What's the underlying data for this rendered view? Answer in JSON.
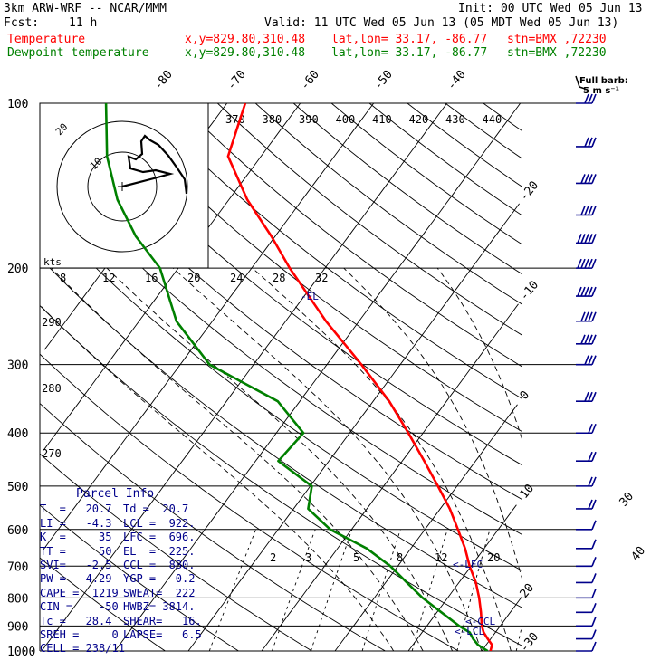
{
  "header": {
    "model": "3km ARW-WRF -- NCAR/MMM",
    "init": "Init: 00 UTC Wed 05 Jun 13",
    "fcst_label": "Fcst:",
    "fcst_value": "11 h",
    "valid": "Valid: 11 UTC Wed 05 Jun 13 (05 MDT Wed 05 Jun 13)",
    "temp_line": {
      "name": "Temperature",
      "xy": "x,y=829.80,310.48",
      "latlon": "lat,lon= 33.17, -86.77",
      "stn": "stn=BMX ,72230"
    },
    "dew_line": {
      "name": "Dewpoint temperature",
      "xy": "x,y=829.80,310.48",
      "latlon": "lat,lon= 33.17, -86.77",
      "stn": "stn=BMX ,72230"
    }
  },
  "colors": {
    "temperature": "#ff0000",
    "dewpoint": "#008000",
    "info": "#00008b",
    "wind": "#00008b",
    "grid": "#000000"
  },
  "barb_legend": {
    "title": "Full barb:",
    "value": "5 m s⁻¹"
  },
  "hodograph": {
    "units": "kts",
    "rings": [
      "10",
      "20"
    ]
  },
  "annotations": {
    "el": "-EL",
    "lfc": "LFC",
    "ccl": "CCL",
    "lcl": "LCL"
  },
  "parcel_info": {
    "title": "Parcel Info",
    "rows": [
      [
        "T  =   20.7",
        "Td =  20.7"
      ],
      [
        "LI =   -4.3",
        "LCL =  922."
      ],
      [
        "K  =     35",
        "LFC =  696."
      ],
      [
        "TT =     50",
        "EL  =  225."
      ],
      [
        "SVI=   -2.5",
        "CCL =  880."
      ],
      [
        "PW =   4.29",
        "YGP =   0.2"
      ],
      [
        "CAPE =  1219",
        "SWEAT=  222"
      ],
      [
        "CIN =    -50",
        "HWBZ= 3814."
      ],
      [
        "Tc =   28.4",
        "SHEAR=   16."
      ],
      [
        "SREH =     0",
        "LAPSE=   6.5"
      ],
      [
        "CELL = 238/11",
        ""
      ]
    ]
  },
  "chart_data": {
    "type": "skew-T log-P",
    "y_axis": {
      "label": "pressure (hPa)",
      "scale": "log",
      "range": [
        1000,
        100
      ],
      "ticks": [
        100,
        200,
        300,
        400,
        500,
        600,
        700,
        800,
        900,
        1000
      ]
    },
    "isotherm_labels": [
      -80,
      -70,
      -60,
      -50,
      -40,
      -30,
      -20,
      -10,
      0,
      10,
      20,
      30,
      40
    ],
    "theta_labels": [
      370,
      380,
      390,
      400,
      410,
      420,
      430,
      440
    ],
    "theta_e_labels": [
      290,
      280,
      270
    ],
    "mixing_ratio_labels_upper": [
      8,
      12,
      16,
      20,
      24,
      28,
      32
    ],
    "mixing_ratio_labels_lower": [
      2,
      3,
      5,
      8,
      12,
      20
    ],
    "series": [
      {
        "name": "Temperature",
        "units": "degC",
        "points": [
          [
            1000,
            21.2
          ],
          [
            975,
            20.8
          ],
          [
            950,
            19.6
          ],
          [
            925,
            18.4
          ],
          [
            900,
            17.5
          ],
          [
            850,
            16.0
          ],
          [
            800,
            14.3
          ],
          [
            750,
            12.3
          ],
          [
            700,
            9.8
          ],
          [
            650,
            7.4
          ],
          [
            600,
            4.5
          ],
          [
            550,
            1.3
          ],
          [
            500,
            -2.6
          ],
          [
            450,
            -7.0
          ],
          [
            400,
            -12.0
          ],
          [
            350,
            -17.8
          ],
          [
            300,
            -25.3
          ],
          [
            250,
            -34.5
          ],
          [
            200,
            -44.8
          ],
          [
            175,
            -50.5
          ],
          [
            150,
            -57.5
          ],
          [
            125,
            -64.5
          ],
          [
            100,
            -67.5
          ]
        ]
      },
      {
        "name": "Dewpoint temperature",
        "units": "degC",
        "points": [
          [
            1000,
            20.8
          ],
          [
            975,
            18.9
          ],
          [
            950,
            17.6
          ],
          [
            925,
            16.5
          ],
          [
            900,
            14.4
          ],
          [
            850,
            10.6
          ],
          [
            800,
            6.6
          ],
          [
            750,
            2.9
          ],
          [
            700,
            -1.0
          ],
          [
            650,
            -6.0
          ],
          [
            600,
            -12.9
          ],
          [
            550,
            -18.0
          ],
          [
            500,
            -19.8
          ],
          [
            450,
            -26.9
          ],
          [
            400,
            -26.3
          ],
          [
            350,
            -33.0
          ],
          [
            300,
            -46.0
          ],
          [
            250,
            -54.9
          ],
          [
            200,
            -62.5
          ],
          [
            175,
            -69.0
          ],
          [
            150,
            -75.2
          ],
          [
            125,
            -81.0
          ],
          [
            100,
            -86.5
          ]
        ]
      }
    ],
    "wind_profile": [
      {
        "p": 100,
        "spd_ms": 15
      },
      {
        "p": 120,
        "spd_ms": 15
      },
      {
        "p": 140,
        "spd_ms": 20
      },
      {
        "p": 160,
        "spd_ms": 20
      },
      {
        "p": 180,
        "spd_ms": 25
      },
      {
        "p": 200,
        "spd_ms": 25
      },
      {
        "p": 225,
        "spd_ms": 25
      },
      {
        "p": 250,
        "spd_ms": 20
      },
      {
        "p": 275,
        "spd_ms": 20
      },
      {
        "p": 300,
        "spd_ms": 15
      },
      {
        "p": 350,
        "spd_ms": 15
      },
      {
        "p": 400,
        "spd_ms": 10
      },
      {
        "p": 450,
        "spd_ms": 10
      },
      {
        "p": 500,
        "spd_ms": 10
      },
      {
        "p": 550,
        "spd_ms": 10
      },
      {
        "p": 600,
        "spd_ms": 5
      },
      {
        "p": 650,
        "spd_ms": 5
      },
      {
        "p": 700,
        "spd_ms": 5
      },
      {
        "p": 750,
        "spd_ms": 5
      },
      {
        "p": 800,
        "spd_ms": 5
      },
      {
        "p": 850,
        "spd_ms": 5
      },
      {
        "p": 900,
        "spd_ms": 5
      },
      {
        "p": 950,
        "spd_ms": 5
      },
      {
        "p": 1000,
        "spd_ms": 5
      }
    ],
    "grid": true
  }
}
